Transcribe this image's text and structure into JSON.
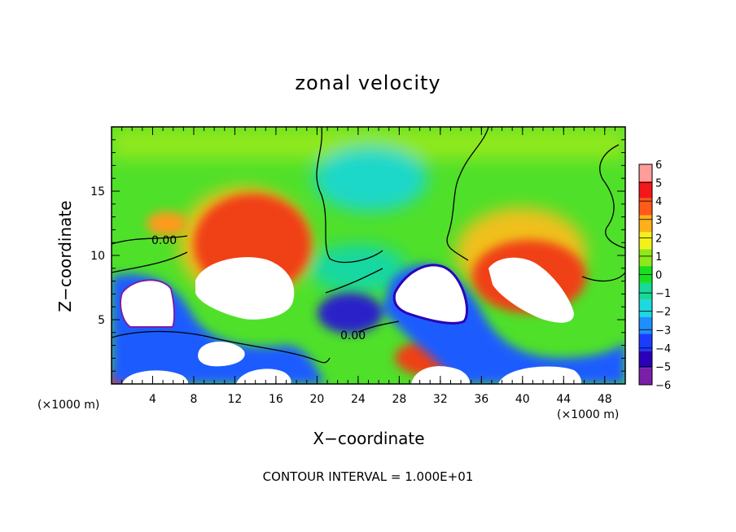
{
  "chart_data": {
    "type": "heatmap",
    "title": "zonal velocity",
    "xlabel": "X−coordinate",
    "ylabel": "Z−coordinate",
    "x_unit_left": "(×1000 m)",
    "x_unit_right": "(×1000 m)",
    "x_ticks": [
      4,
      8,
      12,
      16,
      20,
      24,
      28,
      32,
      36,
      40,
      44,
      48
    ],
    "y_ticks": [
      5,
      10,
      15
    ],
    "xlim": [
      0,
      50
    ],
    "ylim": [
      0,
      20
    ],
    "colorbar": {
      "ticks": [
        6,
        5,
        4,
        3,
        2,
        1,
        0,
        -1,
        -2,
        -3,
        -4,
        -5,
        -6
      ],
      "tick_labels": [
        "6",
        "5",
        "4",
        "3",
        "2",
        "1",
        "0",
        "−1",
        "−2",
        "−3",
        "−4",
        "−5",
        "−6"
      ],
      "range": [
        -6,
        6
      ],
      "colors": [
        "#7a1fa8",
        "#2a00b8",
        "#1a3cff",
        "#1f8fff",
        "#1fd8e0",
        "#19d89a",
        "#18e020",
        "#8ee81a",
        "#f2f21a",
        "#ffb01a",
        "#ff5a1a",
        "#f41818",
        "#ff9c9c"
      ]
    },
    "contour_labels": [
      "0.00",
      "0.00"
    ],
    "contour_interval_text": "CONTOUR INTERVAL = 1.000E+01",
    "out_of_range_color": "#ffffff"
  }
}
